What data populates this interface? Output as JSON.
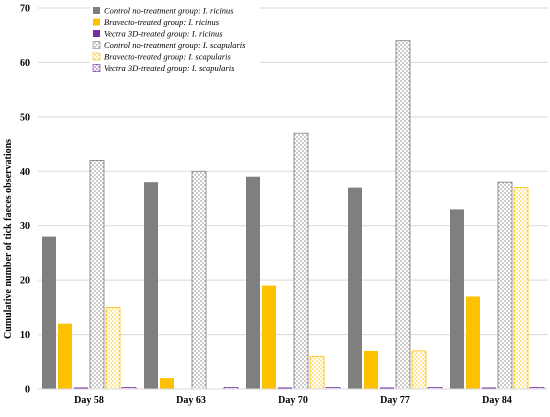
{
  "chart_data": {
    "type": "bar",
    "title": "",
    "xlabel": "",
    "ylabel": "Cumulative number of tick faeces observations",
    "ylim": [
      0,
      70
    ],
    "yticks": [
      0,
      10,
      20,
      30,
      40,
      50,
      60,
      70
    ],
    "grid": true,
    "legend_position": "top-left",
    "categories": [
      "Day 58",
      "Day 63",
      "Day 70",
      "Day 77",
      "Day 84"
    ],
    "series": [
      {
        "name": "Control no-treatment group:  I. ricinus",
        "values": [
          28,
          38,
          39,
          37,
          33
        ],
        "color": "#7f7f7f",
        "pattern": "solid"
      },
      {
        "name": "Bravecto-treated group:  I. ricinus",
        "values": [
          12,
          2,
          19,
          7,
          17
        ],
        "color": "#ffc000",
        "pattern": "solid"
      },
      {
        "name": "Vectra 3D-treated group:  I. ricinus",
        "values": [
          0.2,
          0,
          0.2,
          0.2,
          0.2
        ],
        "color": "#7030a0",
        "pattern": "solid"
      },
      {
        "name": "Control no-treatment group:  I. scapularis",
        "values": [
          42,
          40,
          47,
          64,
          38
        ],
        "color": "#7f7f7f",
        "pattern": "dotted"
      },
      {
        "name": "Bravecto-treated group:  I. scapularis",
        "values": [
          15,
          0,
          6,
          7,
          37
        ],
        "color": "#ffc000",
        "pattern": "dotted"
      },
      {
        "name": "Vectra 3D-treated group:  I. scapularis",
        "values": [
          0.2,
          0.2,
          0.2,
          0.2,
          0.2
        ],
        "color": "#7030a0",
        "pattern": "dotted"
      }
    ]
  }
}
